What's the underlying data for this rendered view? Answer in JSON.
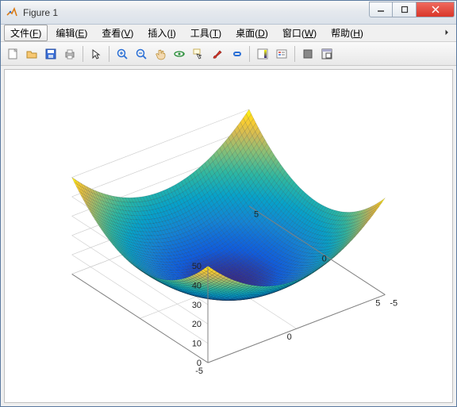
{
  "window": {
    "title": "Figure 1",
    "controls": {
      "min": "min",
      "max": "max",
      "close": "close"
    }
  },
  "menu": {
    "file": {
      "label": "文件",
      "hotkey": "F"
    },
    "edit": {
      "label": "编辑",
      "hotkey": "E"
    },
    "view": {
      "label": "查看",
      "hotkey": "V"
    },
    "insert": {
      "label": "插入",
      "hotkey": "I"
    },
    "tools": {
      "label": "工具",
      "hotkey": "T"
    },
    "desktop": {
      "label": "桌面",
      "hotkey": "D"
    },
    "window_": {
      "label": "窗口",
      "hotkey": "W"
    },
    "help": {
      "label": "帮助",
      "hotkey": "H"
    }
  },
  "toolbar": {
    "new": "new-figure",
    "open": "open",
    "save": "save",
    "print": "print",
    "pointer": "edit-pointer",
    "zoom_in": "zoom-in",
    "zoom_out": "zoom-out",
    "pan": "pan",
    "rotate3d": "rotate-3d",
    "datatip": "data-cursor",
    "brush": "brush",
    "link": "link-plot",
    "colorbar": "insert-colorbar",
    "legend": "insert-legend",
    "hide": "hide-tools",
    "dock": "dock-figure"
  },
  "surface_chart": {
    "type": "surface-mesh-3d",
    "function": "z = x^2 + y^2",
    "x_range": [
      -5,
      5
    ],
    "y_range": [
      -5,
      5
    ],
    "z_range_computed": [
      0,
      50
    ],
    "grid_density": 60,
    "colormap": "parula",
    "colormap_stops": [
      {
        "v": 0.0,
        "c": "#352a87"
      },
      {
        "v": 0.1,
        "c": "#0f5cdd"
      },
      {
        "v": 0.25,
        "c": "#1484d4"
      },
      {
        "v": 0.4,
        "c": "#06a2ca"
      },
      {
        "v": 0.55,
        "c": "#2db7a2"
      },
      {
        "v": 0.7,
        "c": "#87bf77"
      },
      {
        "v": 0.82,
        "c": "#d1ba56"
      },
      {
        "v": 0.92,
        "c": "#fcce2e"
      },
      {
        "v": 1.0,
        "c": "#f9fb0e"
      }
    ],
    "mesh_edge_color": "#000000",
    "mesh_edge_opacity": 0.25,
    "mesh_edge_width": 0.4,
    "axes": {
      "box_color": "#808080",
      "grid_color": "#cccccc",
      "tick_fontsize": 11,
      "tick_color": "#222222",
      "x": {
        "lim": [
          -5,
          5
        ],
        "ticks": [
          -5,
          0,
          5
        ]
      },
      "y": {
        "lim": [
          -5,
          5
        ],
        "ticks": [
          -5,
          0,
          5
        ]
      },
      "z": {
        "lim": [
          0,
          50
        ],
        "ticks": [
          0,
          10,
          20,
          30,
          40,
          50
        ]
      }
    },
    "view": {
      "azimuth_deg": -37.5,
      "elevation_deg": 30
    },
    "background_color": "#ffffff"
  }
}
